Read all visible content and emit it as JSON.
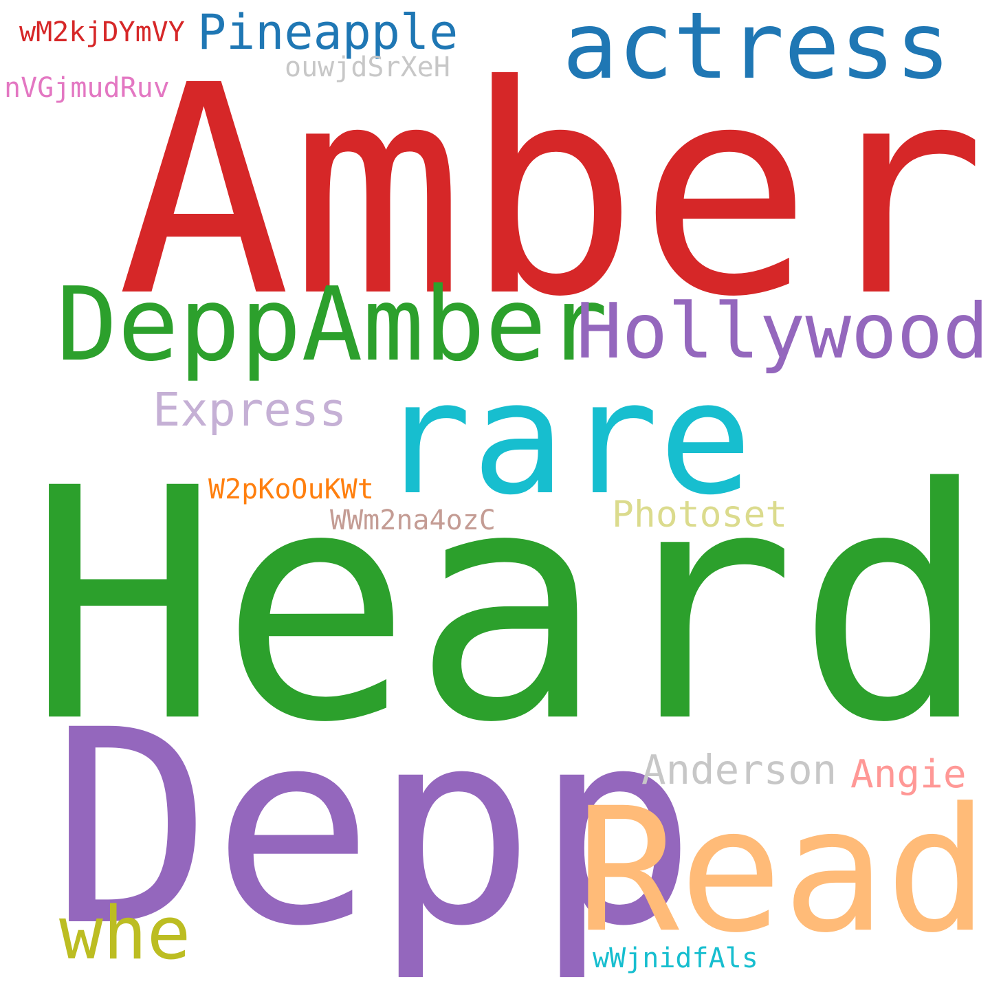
{
  "word_cloud": {
    "words": [
      {
        "id": "amber",
        "text": "Amber",
        "color": "#d62728"
      },
      {
        "id": "heard",
        "text": "Heard",
        "color": "#2ca02c"
      },
      {
        "id": "depp",
        "text": "Depp",
        "color": "#9467bd"
      },
      {
        "id": "read",
        "text": "Read",
        "color": "#ffbb78"
      },
      {
        "id": "rare",
        "text": "rare",
        "color": "#17becf"
      },
      {
        "id": "deppamber",
        "text": "DeppAmber",
        "color": "#2ca02c"
      },
      {
        "id": "hollywood",
        "text": "Hollywood",
        "color": "#9467bd"
      },
      {
        "id": "actress",
        "text": "actress",
        "color": "#1f77b4"
      },
      {
        "id": "whe",
        "text": "whe",
        "color": "#bcbd22"
      },
      {
        "id": "pineapple",
        "text": "Pineapple",
        "color": "#1f77b4"
      },
      {
        "id": "express",
        "text": "Express",
        "color": "#c5b0d5"
      },
      {
        "id": "anderson",
        "text": "Anderson",
        "color": "#c7c7c7"
      },
      {
        "id": "photoset",
        "text": "Photoset",
        "color": "#dbdb8d"
      },
      {
        "id": "angie",
        "text": "Angie",
        "color": "#ff9896"
      },
      {
        "id": "wm2kj",
        "text": "wM2kjDYmVY",
        "color": "#d62728"
      },
      {
        "id": "ouwjd",
        "text": "ouwjdSrXeH",
        "color": "#c7c7c7"
      },
      {
        "id": "nvgjm",
        "text": "nVGjmudRuv",
        "color": "#e377c2"
      },
      {
        "id": "w2pko",
        "text": "W2pKoOuKWt",
        "color": "#ff7f0e"
      },
      {
        "id": "wwm2n",
        "text": "WWm2na4ozC",
        "color": "#c49c94"
      },
      {
        "id": "wwjni",
        "text": "wWjnidfAls",
        "color": "#17becf"
      }
    ]
  }
}
